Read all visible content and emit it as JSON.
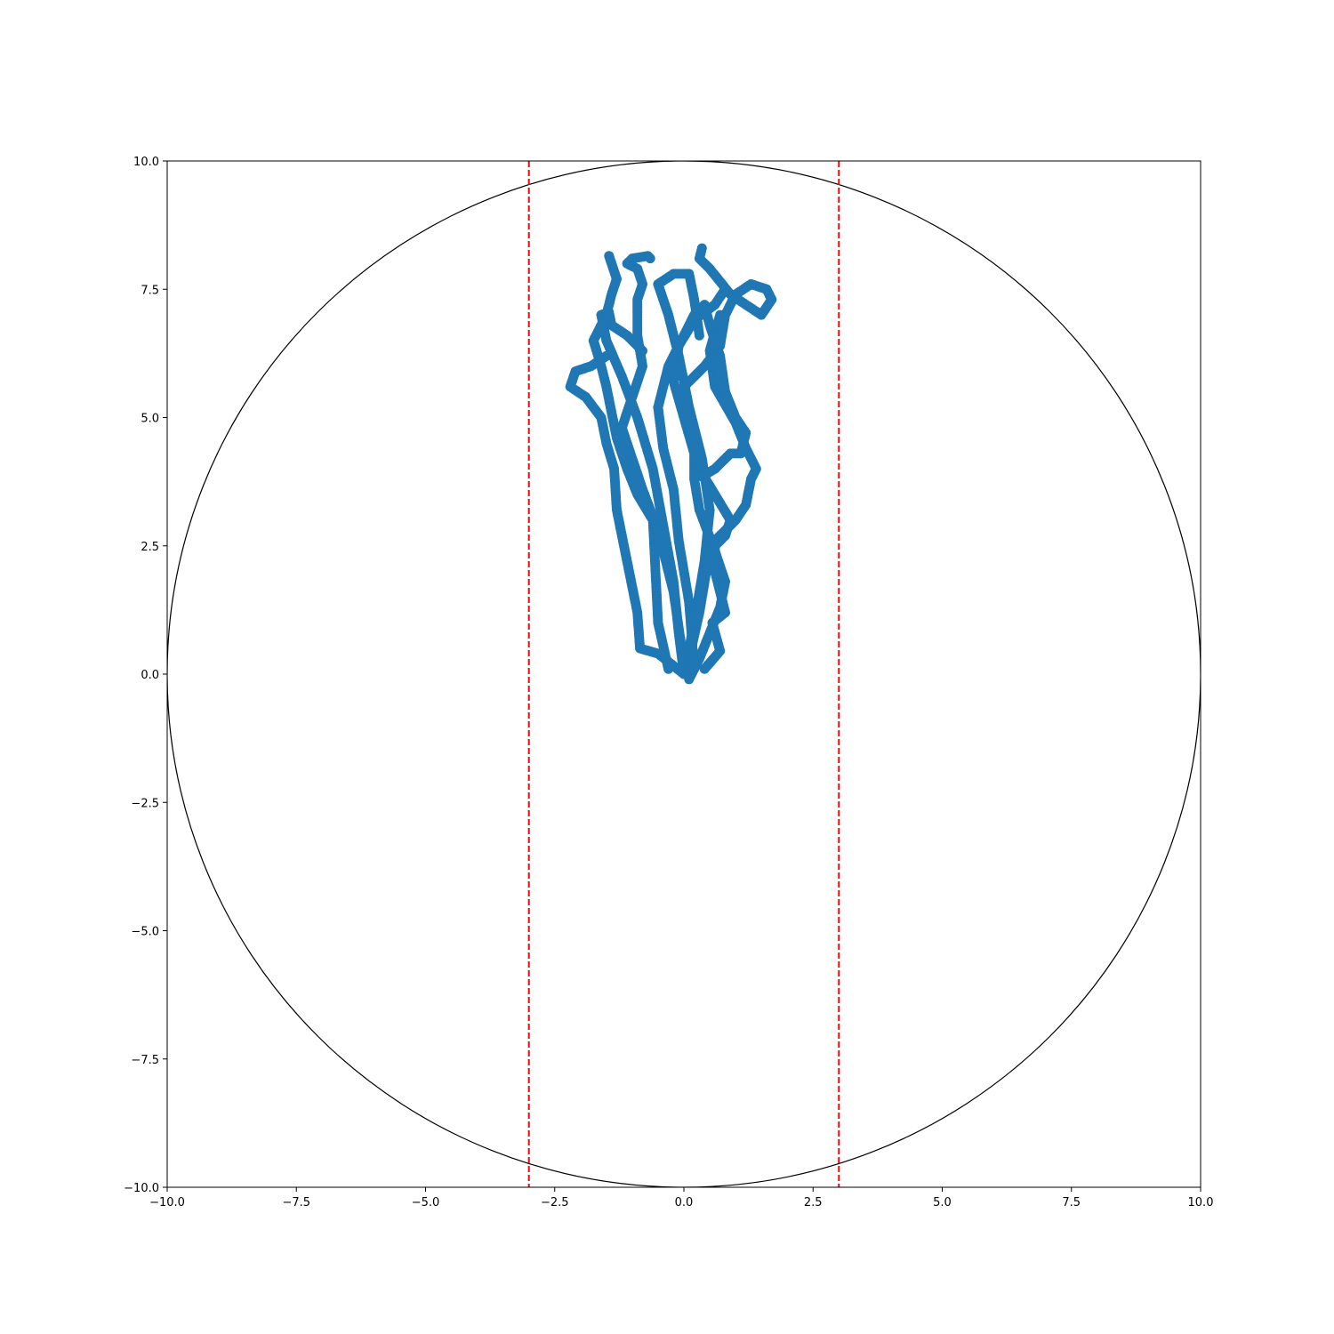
{
  "chart_data": {
    "type": "scatter",
    "title": "",
    "xlabel": "",
    "ylabel": "",
    "xlim": [
      -10,
      10
    ],
    "ylim": [
      -10,
      10
    ],
    "grid": false,
    "legend": "none",
    "xticks": [
      "−10.0",
      "−7.5",
      "−5.0",
      "−2.5",
      "0.0",
      "2.5",
      "5.0",
      "7.5",
      "10.0"
    ],
    "yticks": [
      "−10.0",
      "−7.5",
      "−5.0",
      "−2.5",
      "0.0",
      "2.5",
      "5.0",
      "7.5",
      "10.0"
    ],
    "xtick_values": [
      -10,
      -7.5,
      -5,
      -2.5,
      0,
      2.5,
      5,
      7.5,
      10
    ],
    "ytick_values": [
      -10,
      -7.5,
      -5,
      -2.5,
      0,
      2.5,
      5,
      7.5,
      10
    ],
    "circle": {
      "center": [
        0,
        0
      ],
      "radius": 10,
      "color": "#000000"
    },
    "vlines": [
      {
        "x": -3,
        "color": "#ff0000",
        "style": "dashed"
      },
      {
        "x": 3,
        "color": "#ff0000",
        "style": "dashed"
      }
    ],
    "series_color": "#1f77b4",
    "trajectories": [
      [
        [
          0,
          0
        ],
        [
          -0.1,
          0.8
        ],
        [
          -0.2,
          1.8
        ],
        [
          -0.4,
          2.9
        ],
        [
          -0.6,
          4.0
        ],
        [
          -0.9,
          5.0
        ],
        [
          -1.2,
          5.8
        ],
        [
          -1.5,
          6.5
        ],
        [
          -1.6,
          7.0
        ],
        [
          -1.45,
          7.05
        ],
        [
          -1.4,
          6.8
        ],
        [
          -1.1,
          6.6
        ],
        [
          -0.8,
          6.3
        ]
      ],
      [
        [
          0,
          0
        ],
        [
          0.2,
          1.0
        ],
        [
          0.4,
          2.2
        ],
        [
          0.5,
          3.2
        ],
        [
          0.35,
          4.2
        ],
        [
          0.1,
          5.2
        ],
        [
          -0.1,
          6.2
        ],
        [
          -0.3,
          7.0
        ],
        [
          -0.5,
          7.6
        ],
        [
          -0.2,
          7.8
        ],
        [
          0.1,
          7.8
        ],
        [
          0.2,
          7.3
        ],
        [
          0.3,
          6.6
        ]
      ],
      [
        [
          0,
          0
        ],
        [
          -0.5,
          0.4
        ],
        [
          -0.85,
          0.5
        ],
        [
          -0.9,
          1.2
        ],
        [
          -1.1,
          2.2
        ],
        [
          -1.3,
          3.2
        ],
        [
          -1.35,
          4.0
        ],
        [
          -1.5,
          4.5
        ],
        [
          -1.6,
          5.0
        ],
        [
          -1.9,
          5.4
        ],
        [
          -2.2,
          5.6
        ],
        [
          -2.1,
          5.9
        ],
        [
          -1.8,
          6.0
        ],
        [
          -1.5,
          6.2
        ]
      ],
      [
        [
          0.1,
          -0.1
        ],
        [
          0.3,
          0.3
        ],
        [
          0.5,
          0.8
        ],
        [
          0.7,
          1.3
        ],
        [
          0.8,
          1.8
        ],
        [
          0.6,
          2.4
        ],
        [
          0.3,
          3.2
        ],
        [
          0.2,
          3.8
        ],
        [
          0.2,
          4.3
        ],
        [
          0.0,
          5.0
        ],
        [
          -0.2,
          5.7
        ],
        [
          -0.1,
          6.4
        ],
        [
          0.2,
          6.9
        ],
        [
          0.6,
          7.2
        ],
        [
          0.8,
          7.5
        ]
      ],
      [
        [
          0.4,
          0.1
        ],
        [
          0.7,
          0.45
        ],
        [
          0.55,
          1.0
        ],
        [
          0.8,
          1.2
        ],
        [
          0.6,
          2.0
        ],
        [
          0.6,
          2.6
        ],
        [
          1.0,
          3.0
        ],
        [
          1.2,
          3.3
        ],
        [
          1.3,
          3.8
        ],
        [
          1.4,
          4.0
        ],
        [
          1.2,
          4.4
        ],
        [
          1.0,
          4.9
        ],
        [
          0.6,
          5.6
        ],
        [
          0.5,
          6.3
        ],
        [
          0.7,
          7.0
        ]
      ],
      [
        [
          0.1,
          0.3
        ],
        [
          0.3,
          1.2
        ],
        [
          0.5,
          2.4
        ],
        [
          0.8,
          2.7
        ],
        [
          0.9,
          3.0
        ],
        [
          0.6,
          3.5
        ],
        [
          0.3,
          4.0
        ],
        [
          0.15,
          4.6
        ],
        [
          0.0,
          5.6
        ],
        [
          0.4,
          6.0
        ],
        [
          0.7,
          6.4
        ],
        [
          0.8,
          7.0
        ],
        [
          1.0,
          7.4
        ],
        [
          1.3,
          7.6
        ],
        [
          1.6,
          7.5
        ],
        [
          1.7,
          7.3
        ],
        [
          1.5,
          7.0
        ],
        [
          1.2,
          7.2
        ],
        [
          0.9,
          7.4
        ],
        [
          0.5,
          7.9
        ],
        [
          0.3,
          8.1
        ],
        [
          0.35,
          8.3
        ]
      ],
      [
        [
          -0.3,
          0.1
        ],
        [
          -0.5,
          1.0
        ],
        [
          -0.55,
          2.0
        ],
        [
          -0.6,
          3.0
        ],
        [
          -0.9,
          3.5
        ],
        [
          -1.1,
          4.0
        ],
        [
          -1.3,
          4.6
        ],
        [
          -1.4,
          5.1
        ],
        [
          -1.5,
          5.6
        ],
        [
          -1.6,
          6.0
        ],
        [
          -1.75,
          6.5
        ],
        [
          -1.5,
          7.0
        ],
        [
          -1.4,
          7.4
        ],
        [
          -1.3,
          7.7
        ],
        [
          -1.4,
          8.0
        ],
        [
          -1.45,
          8.15
        ]
      ],
      [
        [
          0,
          0.2
        ],
        [
          -0.2,
          1.6
        ],
        [
          -0.5,
          2.8
        ],
        [
          -0.8,
          3.6
        ],
        [
          -1.0,
          4.2
        ],
        [
          -1.2,
          4.8
        ],
        [
          -1.0,
          5.4
        ],
        [
          -0.8,
          6.0
        ],
        [
          -0.9,
          6.6
        ],
        [
          -0.9,
          7.3
        ],
        [
          -0.8,
          7.6
        ],
        [
          -0.9,
          7.9
        ],
        [
          -1.1,
          8.0
        ],
        [
          -1.0,
          8.1
        ],
        [
          -0.7,
          8.15
        ],
        [
          -0.65,
          8.1
        ]
      ],
      [
        [
          0.2,
          0.1
        ],
        [
          0.1,
          1.4
        ],
        [
          -0.1,
          2.6
        ],
        [
          -0.2,
          3.6
        ],
        [
          -0.4,
          4.4
        ],
        [
          -0.5,
          5.2
        ],
        [
          -0.3,
          6.0
        ],
        [
          0.0,
          6.6
        ],
        [
          0.2,
          7.0
        ],
        [
          0.4,
          7.2
        ],
        [
          0.5,
          6.8
        ],
        [
          0.7,
          6.2
        ],
        [
          0.8,
          5.5
        ],
        [
          1.0,
          5.0
        ],
        [
          1.2,
          4.7
        ],
        [
          1.1,
          4.3
        ],
        [
          0.9,
          4.3
        ],
        [
          0.6,
          4.0
        ],
        [
          0.35,
          3.85
        ]
      ]
    ]
  }
}
